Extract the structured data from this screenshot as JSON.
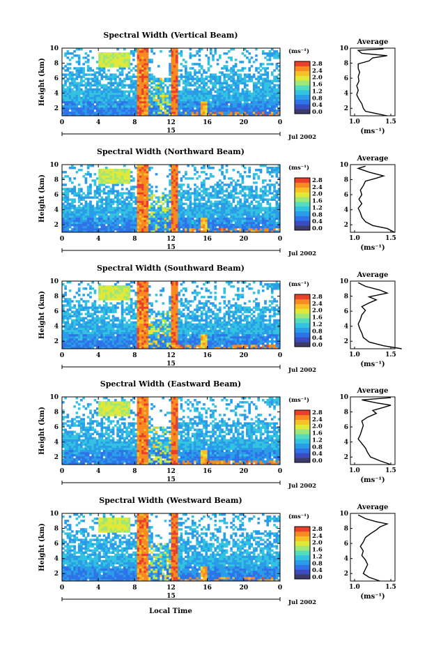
{
  "panels": [
    {
      "title": "Spectral Width (Vertical Beam)",
      "avg_title": "Average",
      "ylabel": "Height (km)",
      "unit": "(ms⁻¹)",
      "date": "Jul 2002",
      "avg_xlabel": "(ms⁻¹)",
      "avg_profile": [
        [
          1.45,
          1.0
        ],
        [
          1.3,
          1.3
        ],
        [
          1.15,
          1.6
        ],
        [
          1.12,
          2.0
        ],
        [
          1.1,
          2.6
        ],
        [
          1.06,
          3.2
        ],
        [
          1.03,
          3.8
        ],
        [
          1.05,
          4.4
        ],
        [
          1.03,
          5.0
        ],
        [
          1.06,
          5.6
        ],
        [
          1.05,
          6.2
        ],
        [
          1.07,
          6.8
        ],
        [
          1.05,
          7.3
        ],
        [
          1.05,
          7.9
        ],
        [
          1.2,
          8.3
        ],
        [
          1.25,
          8.7
        ],
        [
          1.45,
          9.0
        ],
        [
          1.1,
          9.3
        ],
        [
          1.05,
          9.7
        ],
        [
          1.4,
          9.9
        ]
      ]
    },
    {
      "title": "Spectral Width (Northward Beam)",
      "avg_title": "Average",
      "ylabel": "Height (km)",
      "unit": "(ms⁻¹)",
      "date": "Jul 2002",
      "avg_xlabel": "(ms⁻¹)",
      "avg_profile": [
        [
          1.55,
          1.0
        ],
        [
          1.45,
          1.5
        ],
        [
          1.25,
          1.9
        ],
        [
          1.15,
          2.4
        ],
        [
          1.1,
          3.0
        ],
        [
          1.08,
          3.6
        ],
        [
          1.05,
          4.2
        ],
        [
          1.1,
          4.8
        ],
        [
          1.06,
          5.4
        ],
        [
          1.1,
          6.0
        ],
        [
          1.08,
          6.6
        ],
        [
          1.12,
          7.2
        ],
        [
          1.15,
          7.8
        ],
        [
          1.3,
          8.2
        ],
        [
          1.4,
          8.5
        ],
        [
          1.2,
          9.0
        ],
        [
          1.05,
          9.5
        ],
        [
          1.15,
          9.8
        ]
      ]
    },
    {
      "title": "Spectral Width (Southward Beam)",
      "avg_title": "Average",
      "ylabel": "Height (km)",
      "unit": "(ms⁻¹)",
      "date": "Jul 2002",
      "avg_xlabel": "(ms⁻¹)",
      "avg_profile": [
        [
          1.65,
          1.0
        ],
        [
          1.4,
          1.4
        ],
        [
          1.2,
          1.9
        ],
        [
          1.12,
          2.5
        ],
        [
          1.1,
          3.1
        ],
        [
          1.07,
          3.7
        ],
        [
          1.05,
          4.3
        ],
        [
          1.08,
          4.9
        ],
        [
          1.1,
          5.5
        ],
        [
          1.15,
          6.1
        ],
        [
          1.1,
          6.6
        ],
        [
          1.2,
          7.1
        ],
        [
          1.3,
          7.5
        ],
        [
          1.2,
          7.9
        ],
        [
          1.45,
          8.4
        ],
        [
          1.35,
          8.8
        ],
        [
          1.15,
          9.3
        ],
        [
          1.05,
          9.8
        ]
      ]
    },
    {
      "title": "Spectral Width (Eastward Beam)",
      "avg_title": "Average",
      "ylabel": "Height (km)",
      "unit": "(ms⁻¹)",
      "date": "Jul 2002",
      "avg_xlabel": "(ms⁻¹)",
      "avg_profile": [
        [
          1.5,
          1.0
        ],
        [
          1.35,
          1.5
        ],
        [
          1.22,
          2.0
        ],
        [
          1.18,
          2.6
        ],
        [
          1.15,
          3.2
        ],
        [
          1.1,
          3.8
        ],
        [
          1.05,
          4.4
        ],
        [
          1.08,
          5.0
        ],
        [
          1.1,
          5.6
        ],
        [
          1.12,
          6.2
        ],
        [
          1.1,
          6.8
        ],
        [
          1.18,
          7.3
        ],
        [
          1.3,
          7.8
        ],
        [
          1.25,
          8.2
        ],
        [
          1.4,
          8.6
        ],
        [
          1.5,
          8.9
        ],
        [
          1.3,
          9.2
        ],
        [
          1.1,
          9.6
        ],
        [
          1.5,
          9.9
        ]
      ]
    },
    {
      "title": "Spectral Width (Westward Beam)",
      "avg_title": "Average",
      "ylabel": "Height (km)",
      "unit": "(ms⁻¹)",
      "date": "Jul 2002",
      "avg_xlabel": "(ms⁻¹)",
      "avg_profile": [
        [
          1.35,
          1.0
        ],
        [
          1.2,
          1.5
        ],
        [
          1.12,
          2.0
        ],
        [
          1.15,
          2.6
        ],
        [
          1.18,
          3.2
        ],
        [
          1.15,
          3.8
        ],
        [
          1.1,
          4.4
        ],
        [
          1.12,
          5.0
        ],
        [
          1.08,
          5.6
        ],
        [
          1.12,
          6.2
        ],
        [
          1.15,
          6.8
        ],
        [
          1.22,
          7.3
        ],
        [
          1.3,
          7.8
        ],
        [
          1.35,
          8.2
        ],
        [
          1.45,
          8.6
        ],
        [
          1.3,
          8.9
        ],
        [
          1.15,
          9.3
        ],
        [
          1.05,
          9.8
        ]
      ]
    }
  ],
  "footer_xlabel": "Local Time",
  "chart_data": {
    "type": "heatmap",
    "x": {
      "label": "Local Time",
      "range": [
        0,
        24
      ],
      "ticks": [
        "0",
        "4",
        "8",
        "12",
        "16",
        "20",
        "0"
      ],
      "day_label": "15"
    },
    "y": {
      "label": "Height (km)",
      "range": [
        1,
        10
      ],
      "ticks": [
        "2",
        "4",
        "6",
        "8",
        "10"
      ]
    },
    "colorbar": {
      "unit": "(ms⁻¹)",
      "ticks": [
        "0.0",
        "0.4",
        "0.8",
        "1.2",
        "1.6",
        "2.0",
        "2.4",
        "2.8"
      ],
      "range": [
        0,
        2.8
      ],
      "colors": [
        "#3c3c6c",
        "#3b4cc0",
        "#2f73e8",
        "#2a9ce8",
        "#33c3e0",
        "#55dcbc",
        "#9fe878",
        "#e0e838",
        "#f8c028",
        "#f88a22",
        "#e8402a"
      ]
    },
    "avg_axis": {
      "range": [
        1.0,
        1.5
      ],
      "ticks": [
        "1.0",
        "1.5"
      ],
      "ylim": [
        1,
        10
      ],
      "yticks": [
        "2",
        "4",
        "6",
        "8",
        "10"
      ]
    },
    "features": {
      "high_width_bands_hours": [
        [
          8.3,
          9.5
        ],
        [
          12.1,
          12.6
        ]
      ],
      "surface_high_width_hours": [
        [
          12,
          23.5
        ]
      ],
      "cloud_patch": {
        "hours": [
          4,
          7.5
        ],
        "km": [
          7.6,
          9.3
        ]
      },
      "typical_background_ms": 0.8
    }
  }
}
